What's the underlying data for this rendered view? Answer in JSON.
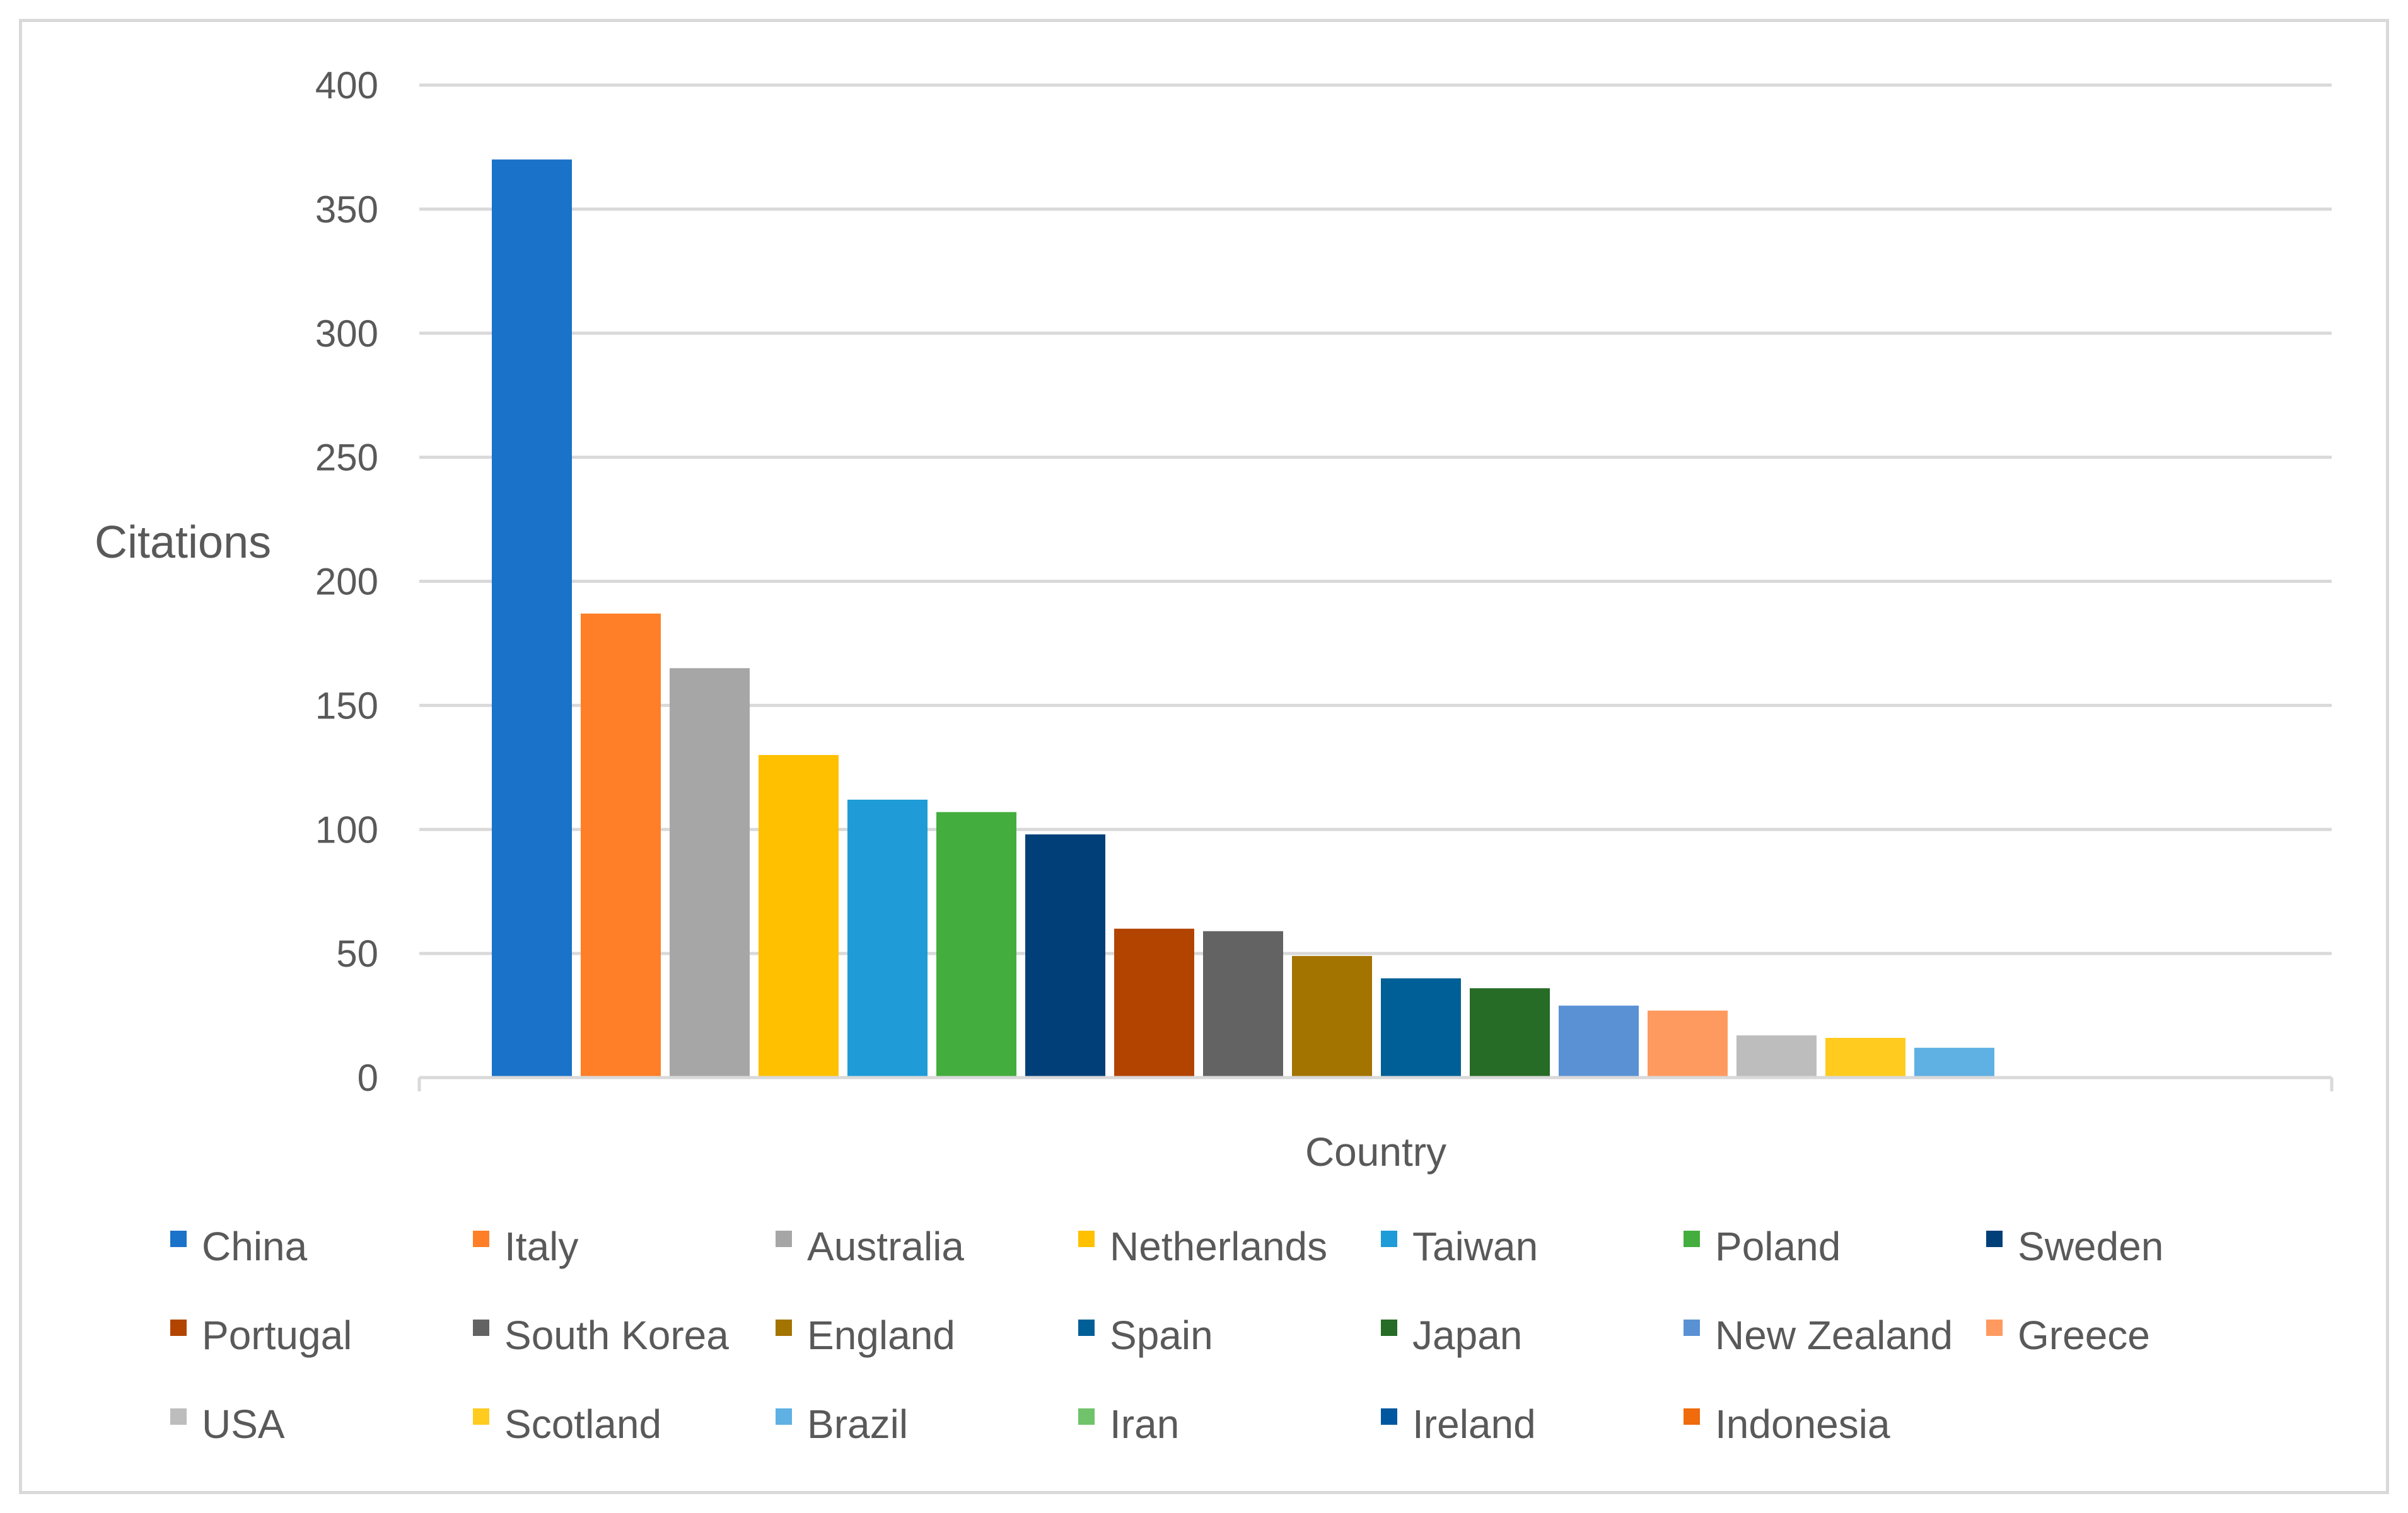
{
  "chart_data": {
    "type": "bar",
    "title": "",
    "xlabel": "Country",
    "ylabel": "Citations",
    "ylim": [
      0,
      400
    ],
    "yticks": [
      0,
      50,
      100,
      150,
      200,
      250,
      300,
      350,
      400
    ],
    "grid": true,
    "legend_position": "bottom",
    "categories": [
      "China",
      "Italy",
      "Australia",
      "Netherlands",
      "Taiwan",
      "Poland",
      "Sweden",
      "Portugal",
      "South Korea",
      "England",
      "Spain",
      "Japan",
      "New Zealand",
      "Greece",
      "USA",
      "Scotland",
      "Brazil",
      "Iran",
      "Ireland",
      "Indonesia"
    ],
    "values": [
      370,
      187,
      165,
      130,
      112,
      107,
      98,
      60,
      59,
      49,
      40,
      36,
      29,
      27,
      17,
      16,
      12,
      0,
      0,
      0
    ],
    "colors": [
      "#1a72c9",
      "#fe7f27",
      "#a6a6a6",
      "#ffc000",
      "#1f9bd7",
      "#43ae3d",
      "#003f78",
      "#b24400",
      "#636363",
      "#a37400",
      "#005f97",
      "#266b26",
      "#5a91d4",
      "#fe9a5f",
      "#bdbdbd",
      "#ffcb1f",
      "#5fb0e3",
      "#70c36a",
      "#00579f",
      "#ef6b0c"
    ]
  }
}
